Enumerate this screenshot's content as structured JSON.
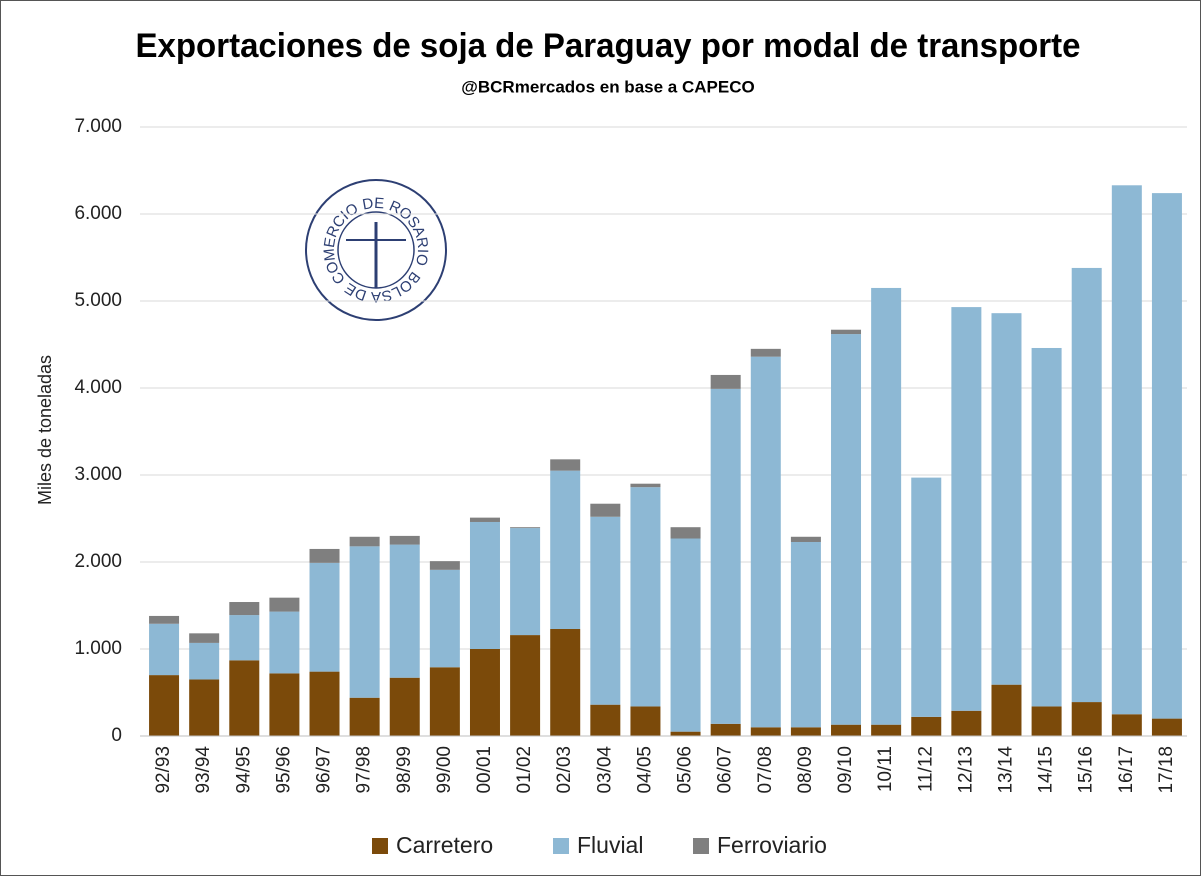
{
  "chart_data": {
    "type": "stacked_bar",
    "title": "Exportaciones de soja de Paraguay por modal de transporte",
    "subtitle": "@BCRmercados en base a CAPECO",
    "logo": "BOLSA DE COMERCIO DE ROSARIO",
    "ylabel": "Miles de toneladas",
    "categories": [
      "92/93",
      "93/94",
      "94/95",
      "95/96",
      "96/97",
      "97/98",
      "98/99",
      "99/00",
      "00/01",
      "01/02",
      "02/03",
      "03/04",
      "04/05",
      "05/06",
      "06/07",
      "07/08",
      "08/09",
      "09/10",
      "10/11",
      "11/12",
      "12/13",
      "13/14",
      "14/15",
      "15/16",
      "16/17",
      "17/18"
    ],
    "series": [
      {
        "name": "Carretero",
        "color": "#7b4a0a",
        "values": [
          700,
          650,
          870,
          720,
          740,
          440,
          670,
          790,
          1000,
          1160,
          1230,
          360,
          340,
          50,
          140,
          100,
          100,
          130,
          130,
          220,
          290,
          590,
          340,
          390,
          250,
          200
        ]
      },
      {
        "name": "Fluvial",
        "color": "#8db8d4",
        "values": [
          590,
          420,
          520,
          710,
          1250,
          1740,
          1530,
          1120,
          1460,
          1230,
          1820,
          2160,
          2520,
          2220,
          3850,
          4260,
          2130,
          4490,
          5020,
          2750,
          4640,
          4270,
          4120,
          4990,
          6080,
          6040
        ]
      },
      {
        "name": "Ferroviario",
        "color": "#7f7f7f",
        "values": [
          90,
          110,
          150,
          160,
          160,
          110,
          100,
          100,
          50,
          10,
          130,
          150,
          40,
          130,
          160,
          90,
          60,
          50,
          0,
          0,
          0,
          0,
          0,
          0,
          0,
          0
        ]
      }
    ],
    "ylim": [
      0,
      7000
    ],
    "yticks": [
      0,
      {
        "value": 1000,
        "label": "1.000"
      },
      {
        "value": 2000,
        "label": "2.000"
      },
      {
        "value": 3000,
        "label": "3.000"
      },
      {
        "value": 4000,
        "label": "4.000"
      },
      {
        "value": 5000,
        "label": "5.000"
      },
      {
        "value": 6000,
        "label": "6.000"
      },
      {
        "value": 7000,
        "label": "7.000"
      }
    ],
    "grid": true,
    "legend": "bottom"
  }
}
